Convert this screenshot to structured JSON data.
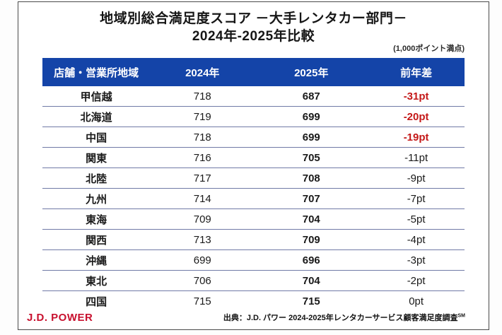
{
  "title": {
    "line1": "地域別総合満足度スコア －大手レンタカー部門－",
    "line2": "2024年-2025年比較"
  },
  "scale_note": "(1,000ポイント満点)",
  "table": {
    "headers": [
      "店舗・営業所地域",
      "2024年",
      "2025年",
      "前年差"
    ],
    "rows": [
      {
        "region": "甲信越",
        "y2024": "718",
        "y2025": "687",
        "diff": "-31pt",
        "red": true
      },
      {
        "region": "北海道",
        "y2024": "719",
        "y2025": "699",
        "diff": "-20pt",
        "red": true
      },
      {
        "region": "中国",
        "y2024": "718",
        "y2025": "699",
        "diff": "-19pt",
        "red": true
      },
      {
        "region": "関東",
        "y2024": "716",
        "y2025": "705",
        "diff": "-11pt",
        "red": false
      },
      {
        "region": "北陸",
        "y2024": "717",
        "y2025": "708",
        "diff": "-9pt",
        "red": false
      },
      {
        "region": "九州",
        "y2024": "714",
        "y2025": "707",
        "diff": "-7pt",
        "red": false
      },
      {
        "region": "東海",
        "y2024": "709",
        "y2025": "704",
        "diff": "-5pt",
        "red": false
      },
      {
        "region": "関西",
        "y2024": "713",
        "y2025": "709",
        "diff": "-4pt",
        "red": false
      },
      {
        "region": "沖縄",
        "y2024": "699",
        "y2025": "696",
        "diff": "-3pt",
        "red": false
      },
      {
        "region": "東北",
        "y2024": "706",
        "y2025": "704",
        "diff": "-2pt",
        "red": false
      },
      {
        "region": "四国",
        "y2024": "715",
        "y2025": "715",
        "diff": "0pt",
        "red": false
      }
    ]
  },
  "footer": {
    "logo": "J.D. POWER",
    "source": "出典：J.D. パワー 2024-2025年レンタカーサービス顧客満足度調査",
    "source_superscript": "SM"
  },
  "colors": {
    "header_bg": "#1444a8",
    "row_divider": "#707aa6",
    "negative_highlight": "#c41818",
    "logo_red": "#c8102e",
    "card_border": "#4a4a4a"
  },
  "chart_data": {
    "type": "table",
    "title": "地域別総合満足度スコア －大手レンタカー部門－ 2024年-2025年比較",
    "note": "(1,000ポイント満点)",
    "columns": [
      "店舗・営業所地域",
      "2024年",
      "2025年",
      "前年差"
    ],
    "categories": [
      "甲信越",
      "北海道",
      "中国",
      "関東",
      "北陸",
      "九州",
      "東海",
      "関西",
      "沖縄",
      "東北",
      "四国"
    ],
    "series": [
      {
        "name": "2024年",
        "values": [
          718,
          719,
          718,
          716,
          717,
          714,
          709,
          713,
          699,
          706,
          715
        ]
      },
      {
        "name": "2025年",
        "values": [
          687,
          699,
          699,
          705,
          708,
          707,
          704,
          709,
          696,
          704,
          715
        ]
      },
      {
        "name": "前年差",
        "values": [
          "-31pt",
          "-20pt",
          "-19pt",
          "-11pt",
          "-9pt",
          "-7pt",
          "-5pt",
          "-4pt",
          "-3pt",
          "-2pt",
          "0pt"
        ]
      }
    ],
    "highlighted_negative_rows": [
      "甲信越",
      "北海道",
      "中国"
    ],
    "source": "出典：J.D. パワー 2024-2025年レンタカーサービス顧客満足度調査SM"
  }
}
